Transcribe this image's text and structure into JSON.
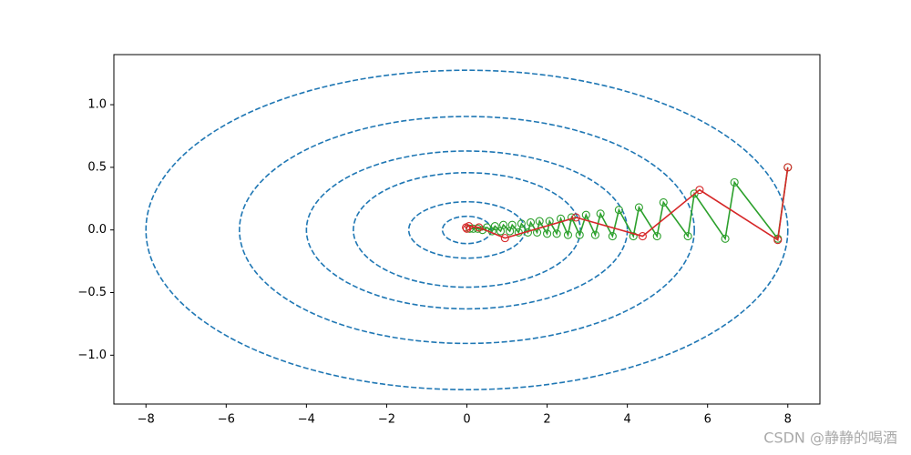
{
  "chart_data": {
    "type": "line",
    "xlim": [
      -8.8,
      8.8
    ],
    "ylim": [
      -1.39,
      1.4
    ],
    "xticks": [
      {
        "value": -8,
        "label": "−8"
      },
      {
        "value": -6,
        "label": "−6"
      },
      {
        "value": -4,
        "label": "−4"
      },
      {
        "value": -2,
        "label": "−2"
      },
      0,
      2,
      4,
      6,
      8
    ],
    "yticks": [
      {
        "value": -1,
        "label": "−1.0"
      },
      {
        "value": -0.5,
        "label": "−0.5"
      },
      {
        "value": 0,
        "label": "0.0"
      },
      {
        "value": 0.5,
        "label": "0.5"
      },
      {
        "value": 1,
        "label": "1.0"
      }
    ],
    "contours": {
      "color": "#1f77b4",
      "rx": [
        8,
        5.67,
        4.0,
        2.83,
        1.45,
        0.61
      ],
      "ry": [
        1.275,
        0.906,
        0.63,
        0.457,
        0.225,
        0.109
      ]
    },
    "series": [
      {
        "color": "#2ca02c",
        "x": [
          8,
          7.75,
          6.67,
          6.44,
          5.67,
          5.51,
          4.9,
          4.74,
          4.29,
          4.15,
          3.79,
          3.63,
          3.33,
          3.2,
          2.97,
          2.81,
          2.61,
          2.52,
          2.34,
          2.24,
          2.06,
          2.0,
          1.81,
          1.75,
          1.59,
          1.52,
          1.36,
          1.29,
          1.13,
          1.07,
          0.91,
          0.84,
          0.7,
          0.63,
          0.5,
          0.39,
          0.27,
          0.16,
          0.07
        ],
        "values": [
          0.5,
          -0.07,
          0.38,
          -0.07,
          0.29,
          -0.05,
          0.22,
          -0.05,
          0.18,
          -0.05,
          0.16,
          -0.05,
          0.13,
          -0.04,
          0.12,
          -0.04,
          0.1,
          -0.04,
          0.09,
          -0.03,
          0.07,
          -0.03,
          0.07,
          -0.02,
          0.06,
          -0.02,
          0.05,
          -0.02,
          0.04,
          -0.01,
          0.04,
          -0.01,
          0.03,
          -0.01,
          0.02,
          0.0,
          0.01,
          0.01,
          0.01
        ]
      },
      {
        "color": "#d62728",
        "x": [
          8,
          7.75,
          5.8,
          4.38,
          2.72,
          0.95,
          0.3,
          0.05,
          -0.02,
          0.0
        ],
        "values": [
          0.5,
          -0.08,
          0.32,
          -0.05,
          0.1,
          -0.065,
          0.02,
          0.03,
          0.02,
          0.01
        ]
      }
    ],
    "watermark": "CSDN @静静的喝酒"
  }
}
